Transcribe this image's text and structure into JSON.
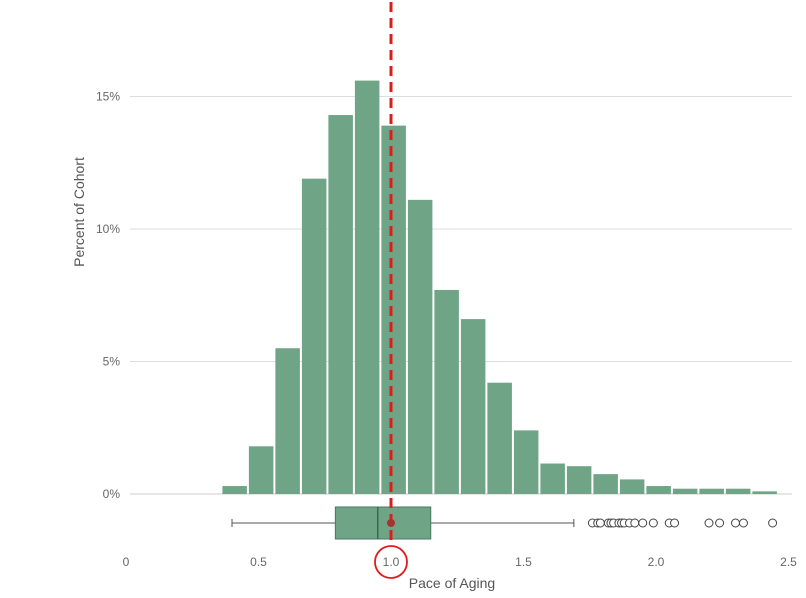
{
  "chart_data": {
    "type": "bar",
    "xlabel": "Pace of Aging",
    "ylabel": "Percent of Cohort",
    "xlim": [
      0,
      2.5
    ],
    "ylim": [
      0,
      17.5
    ],
    "x_ticks": [
      {
        "value": 0,
        "label": "0"
      },
      {
        "value": 0.5,
        "label": "0.5"
      },
      {
        "value": 1.0,
        "label": "1.0"
      },
      {
        "value": 1.5,
        "label": "1.5"
      },
      {
        "value": 2.0,
        "label": "2.0"
      },
      {
        "value": 2.5,
        "label": "2.5"
      }
    ],
    "y_ticks": [
      {
        "value": 0,
        "label": "0%"
      },
      {
        "value": 5,
        "label": "5%"
      },
      {
        "value": 10,
        "label": "10%"
      },
      {
        "value": 15,
        "label": "15%"
      }
    ],
    "grid": "horizontal",
    "bar_color": "#6fa487",
    "bins": [
      {
        "start": 0.36,
        "end": 0.46,
        "value": 0.3
      },
      {
        "start": 0.46,
        "end": 0.56,
        "value": 1.8
      },
      {
        "start": 0.56,
        "end": 0.66,
        "value": 5.5
      },
      {
        "start": 0.66,
        "end": 0.76,
        "value": 11.9
      },
      {
        "start": 0.76,
        "end": 0.86,
        "value": 14.3
      },
      {
        "start": 0.86,
        "end": 0.96,
        "value": 15.6
      },
      {
        "start": 0.96,
        "end": 1.06,
        "value": 13.9
      },
      {
        "start": 1.06,
        "end": 1.16,
        "value": 11.1
      },
      {
        "start": 1.16,
        "end": 1.26,
        "value": 7.7
      },
      {
        "start": 1.26,
        "end": 1.36,
        "value": 6.6
      },
      {
        "start": 1.36,
        "end": 1.46,
        "value": 4.2
      },
      {
        "start": 1.46,
        "end": 1.56,
        "value": 2.4
      },
      {
        "start": 1.56,
        "end": 1.66,
        "value": 1.15
      },
      {
        "start": 1.66,
        "end": 1.76,
        "value": 1.05
      },
      {
        "start": 1.76,
        "end": 1.86,
        "value": 0.75
      },
      {
        "start": 1.86,
        "end": 1.96,
        "value": 0.55
      },
      {
        "start": 1.96,
        "end": 2.06,
        "value": 0.3
      },
      {
        "start": 2.06,
        "end": 2.16,
        "value": 0.2
      },
      {
        "start": 2.16,
        "end": 2.26,
        "value": 0.2
      },
      {
        "start": 2.26,
        "end": 2.36,
        "value": 0.2
      },
      {
        "start": 2.36,
        "end": 2.46,
        "value": 0.1
      }
    ],
    "boxplot": {
      "whisker_low": 0.4,
      "q1": 0.79,
      "median": 0.95,
      "q3": 1.15,
      "whisker_high": 1.69,
      "mean": 1.0,
      "outliers": [
        1.76,
        1.78,
        1.79,
        1.82,
        1.83,
        1.84,
        1.86,
        1.87,
        1.88,
        1.9,
        1.92,
        1.95,
        1.99,
        2.05,
        2.07,
        2.2,
        2.24,
        2.3,
        2.33,
        2.44
      ],
      "box_color": "#6fa487",
      "mean_color": "#a83232"
    },
    "reference_line": {
      "x": 1.0,
      "style": "dashed",
      "color": "#e01b1b"
    },
    "highlight_tick": {
      "value": 1.0,
      "shape": "circle",
      "color": "#e01b1b"
    }
  }
}
